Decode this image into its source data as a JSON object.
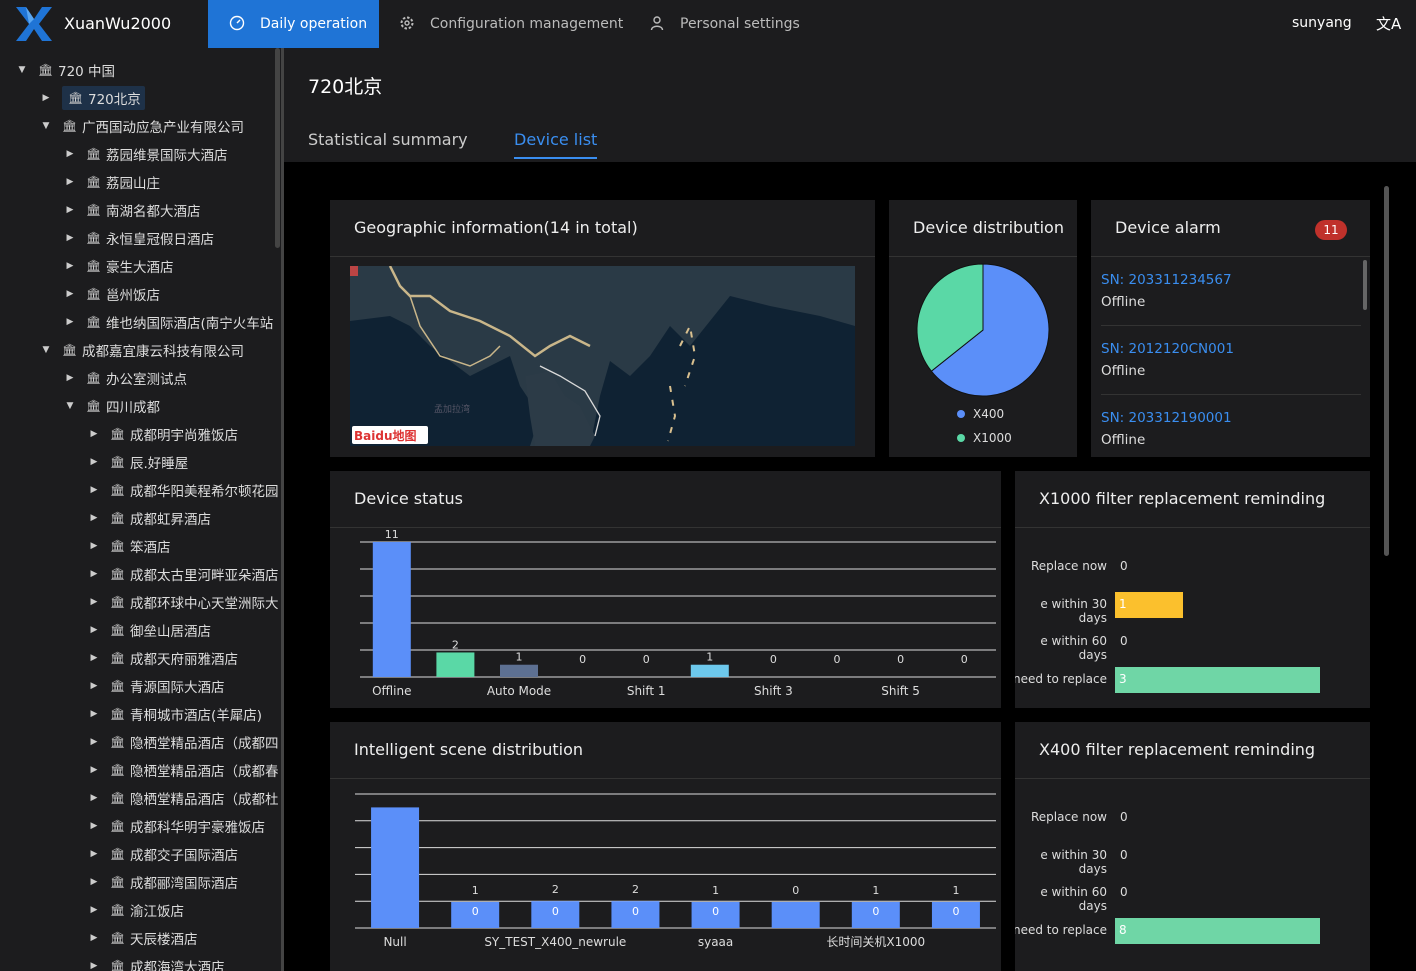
{
  "app": {
    "name": "XuanWu2000"
  },
  "nav": {
    "daily": "Daily operation",
    "config": "Configuration management",
    "personal": "Personal settings",
    "user": "sunyang",
    "lang_icon": "translate-icon"
  },
  "tree": {
    "items": [
      {
        "label": "720 中国",
        "level": 0,
        "expanded": true
      },
      {
        "label": "720北京",
        "level": 1,
        "expanded": false,
        "selected": true
      },
      {
        "label": "广西国动应急产业有限公司",
        "level": 1,
        "expanded": true
      },
      {
        "label": "荔园维景国际大酒店",
        "level": 2,
        "expanded": false
      },
      {
        "label": "荔园山庄",
        "level": 2,
        "expanded": false
      },
      {
        "label": "南湖名都大酒店",
        "level": 2,
        "expanded": false
      },
      {
        "label": "永恒皇冠假日酒店",
        "level": 2,
        "expanded": false
      },
      {
        "label": "豪生大酒店",
        "level": 2,
        "expanded": false
      },
      {
        "label": "邕州饭店",
        "level": 2,
        "expanded": false
      },
      {
        "label": "维也纳国际酒店(南宁火车站",
        "level": 2,
        "expanded": false
      },
      {
        "label": "成都嘉宜康云科技有限公司",
        "level": 1,
        "expanded": true
      },
      {
        "label": "办公室测试点",
        "level": 2,
        "expanded": false
      },
      {
        "label": "四川成都",
        "level": 2,
        "expanded": true
      },
      {
        "label": "成都明宇尚雅饭店",
        "level": 3,
        "expanded": false
      },
      {
        "label": "辰.好睡屋",
        "level": 3,
        "expanded": false
      },
      {
        "label": "成都华阳美程希尔顿花园",
        "level": 3,
        "expanded": false
      },
      {
        "label": "成都虹昇酒店",
        "level": 3,
        "expanded": false
      },
      {
        "label": "笨酒店",
        "level": 3,
        "expanded": false
      },
      {
        "label": "成都太古里河畔亚朵酒店",
        "level": 3,
        "expanded": false
      },
      {
        "label": "成都环球中心天堂洲际大",
        "level": 3,
        "expanded": false
      },
      {
        "label": "御垒山居酒店",
        "level": 3,
        "expanded": false
      },
      {
        "label": "成都天府丽雅酒店",
        "level": 3,
        "expanded": false
      },
      {
        "label": "青源国际大酒店",
        "level": 3,
        "expanded": false
      },
      {
        "label": "青桐城市酒店(羊犀店)",
        "level": 3,
        "expanded": false
      },
      {
        "label": "隐栖堂精品酒店（成都四",
        "level": 3,
        "expanded": false
      },
      {
        "label": "隐栖堂精品酒店（成都春",
        "level": 3,
        "expanded": false
      },
      {
        "label": "隐栖堂精品酒店（成都杜",
        "level": 3,
        "expanded": false
      },
      {
        "label": "成都科华明宇豪雅饭店",
        "level": 3,
        "expanded": false
      },
      {
        "label": "成都交子国际酒店",
        "level": 3,
        "expanded": false
      },
      {
        "label": "成都郦湾国际酒店",
        "level": 3,
        "expanded": false
      },
      {
        "label": "渝江饭店",
        "level": 3,
        "expanded": false
      },
      {
        "label": "天辰楼酒店",
        "level": 3,
        "expanded": false
      },
      {
        "label": "成都海湾大酒店",
        "level": 3,
        "expanded": false
      }
    ]
  },
  "page": {
    "title": "720北京",
    "tabs": [
      "Statistical summary",
      "Device list"
    ],
    "active_tab": 1
  },
  "geo": {
    "title": "Geographic information(14 in total)",
    "map_logo": "Baidu地图",
    "map_label": "孟加拉湾"
  },
  "distribution": {
    "title": "Device distribution",
    "legend": [
      "X400",
      "X1000"
    ],
    "colors": [
      "#5b8ff9",
      "#5ad8a6"
    ],
    "values": [
      9,
      5
    ]
  },
  "alarm": {
    "title": "Device alarm",
    "count": "11",
    "items": [
      {
        "sn": "SN: 203311234567",
        "status": "Offline"
      },
      {
        "sn": "SN: 2012120CN001",
        "status": "Offline"
      },
      {
        "sn": "SN: 203312190001",
        "status": "Offline"
      }
    ]
  },
  "device_status": {
    "title": "Device status",
    "chart_data": {
      "type": "bar",
      "categories": [
        "Offline",
        "",
        "Auto Mode",
        "",
        "Shift 1",
        "",
        "Shift 3",
        "",
        "Shift 5",
        ""
      ],
      "values": [
        11,
        2,
        1,
        0,
        0,
        1,
        0,
        0,
        0,
        0
      ],
      "bar_colors": [
        "#5b8ff9",
        "#5ad8a6",
        "#5d7092",
        "#f6bd16",
        "#e86452",
        "#6dc8ec",
        "#945fb9",
        "#ff9845",
        "#1e9493",
        "#ff99c3"
      ],
      "grid": true
    }
  },
  "x1000_filter": {
    "title": "X1000 filter replacement reminding",
    "chart_data": {
      "type": "bar",
      "orientation": "horizontal",
      "categories": [
        "Replace now",
        "e within 30 days",
        "e within 60 days",
        "need to replace"
      ],
      "values": [
        0,
        1,
        0,
        3
      ],
      "bar_colors": [
        "#f6bd16",
        "#fbc02d",
        "#5ad8a6",
        "#6fd6a6"
      ]
    }
  },
  "scene": {
    "title": "Intelligent scene distribution",
    "chart_data": {
      "type": "bar",
      "categories": [
        "Null",
        "",
        "SY_TEST_X400_newrule",
        "",
        "syaaa",
        "",
        "长时间关机X1000",
        ""
      ],
      "series": [
        {
          "values": [
            9,
            0,
            0,
            0,
            0,
            0,
            0,
            0
          ]
        },
        {
          "values": [
            0,
            1,
            2,
            2,
            1,
            0,
            1,
            1
          ]
        }
      ],
      "labels_top": [
        "",
        "1",
        "2",
        "2",
        "1",
        "0",
        "1",
        "1"
      ],
      "labels_inner": [
        "",
        "0",
        "0",
        "0",
        "0",
        "",
        "0",
        "0"
      ],
      "grid": true
    }
  },
  "x400_filter": {
    "title": "X400 filter replacement reminding",
    "chart_data": {
      "type": "bar",
      "orientation": "horizontal",
      "categories": [
        "Replace now",
        "e within 30 days",
        "e within 60 days",
        "need to replace"
      ],
      "values": [
        0,
        0,
        0,
        8
      ],
      "bar_colors": [
        "#5ad8a6",
        "#5ad8a6",
        "#5ad8a6",
        "#6fd6a6"
      ]
    }
  }
}
